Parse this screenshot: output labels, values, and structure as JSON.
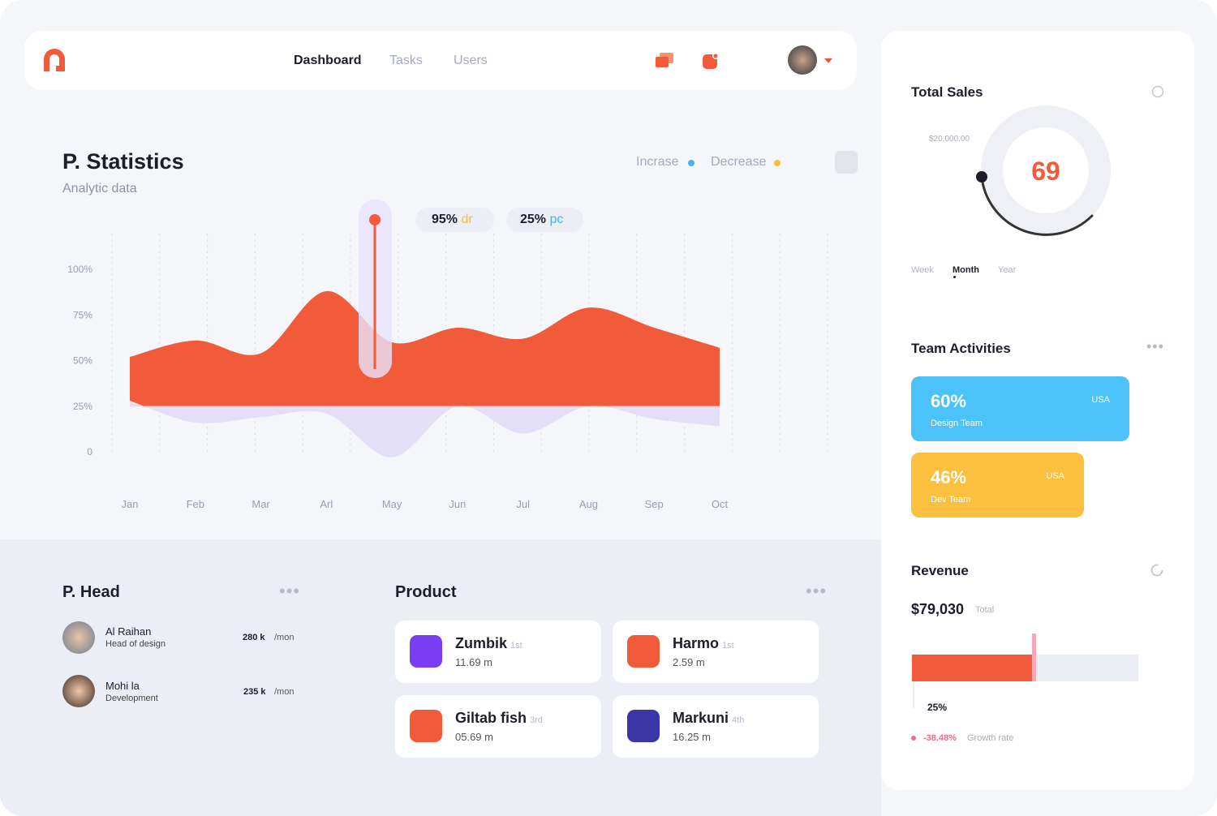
{
  "nav": {
    "items": [
      "Dashboard",
      "Tasks",
      "Users"
    ]
  },
  "chart_data": {
    "type": "area",
    "title": "P. Statistics",
    "subtitle": "Analytic data",
    "annotations": [
      {
        "value": "95%",
        "unit": "dr"
      },
      {
        "value": "25%",
        "unit": "pc"
      }
    ],
    "categories": [
      "Jan",
      "Feb",
      "Mar",
      "Arl",
      "May",
      "Jun",
      "Jul",
      "Aug",
      "Sep",
      "Oct"
    ],
    "series": [
      {
        "name": "Incrase",
        "color": "#f25b3a",
        "values": [
          52,
          61,
          54,
          88,
          60,
          68,
          62,
          79,
          68,
          57
        ]
      },
      {
        "name": "Decrease",
        "color": "#e3dff6",
        "values": [
          28,
          16,
          19,
          21,
          -3,
          25,
          10,
          25,
          18,
          14
        ]
      }
    ],
    "ylim": [
      -10,
      110
    ],
    "yticks": [
      0,
      {
        "value": 25,
        "label": "25%"
      },
      {
        "value": 50,
        "label": "50%"
      },
      {
        "value": 75,
        "label": "75%"
      },
      {
        "value": 100,
        "label": "100%"
      }
    ]
  },
  "head": {
    "title": "P. Head",
    "people": [
      {
        "name": "Al Raihan",
        "role": "Head of design",
        "amount": "280 k",
        "unit": "/mon"
      },
      {
        "name": "Mohi la",
        "role": "Development",
        "amount": "235 k",
        "unit": "/mon"
      }
    ]
  },
  "product": {
    "title": "Product",
    "items": [
      {
        "name": "Zumbik",
        "rank": "1st",
        "value": "11.69 m"
      },
      {
        "name": "Harmo",
        "rank": "1st",
        "value": "2.59 m"
      },
      {
        "name": "Giltab fish",
        "rank": "3rd",
        "value": "05.69 m"
      },
      {
        "name": "Markuni",
        "rank": "4th",
        "value": "16.25 m"
      }
    ]
  },
  "sales": {
    "title": "Total Sales",
    "max": "$20,000.00",
    "value": "69",
    "tabs": [
      "Week",
      "Month",
      "Year"
    ]
  },
  "team": {
    "title": "Team Activities",
    "cards": [
      {
        "value": "60%",
        "label": "Design Team",
        "region": "USA"
      },
      {
        "value": "46%",
        "label": "Dev Team",
        "region": "USA"
      }
    ]
  },
  "revenue": {
    "title": "Revenue",
    "amount": "$79,030",
    "amount_note": "Total",
    "bar_label": "25%",
    "growth": "-38.48%",
    "growth_note": "Growth rate"
  }
}
